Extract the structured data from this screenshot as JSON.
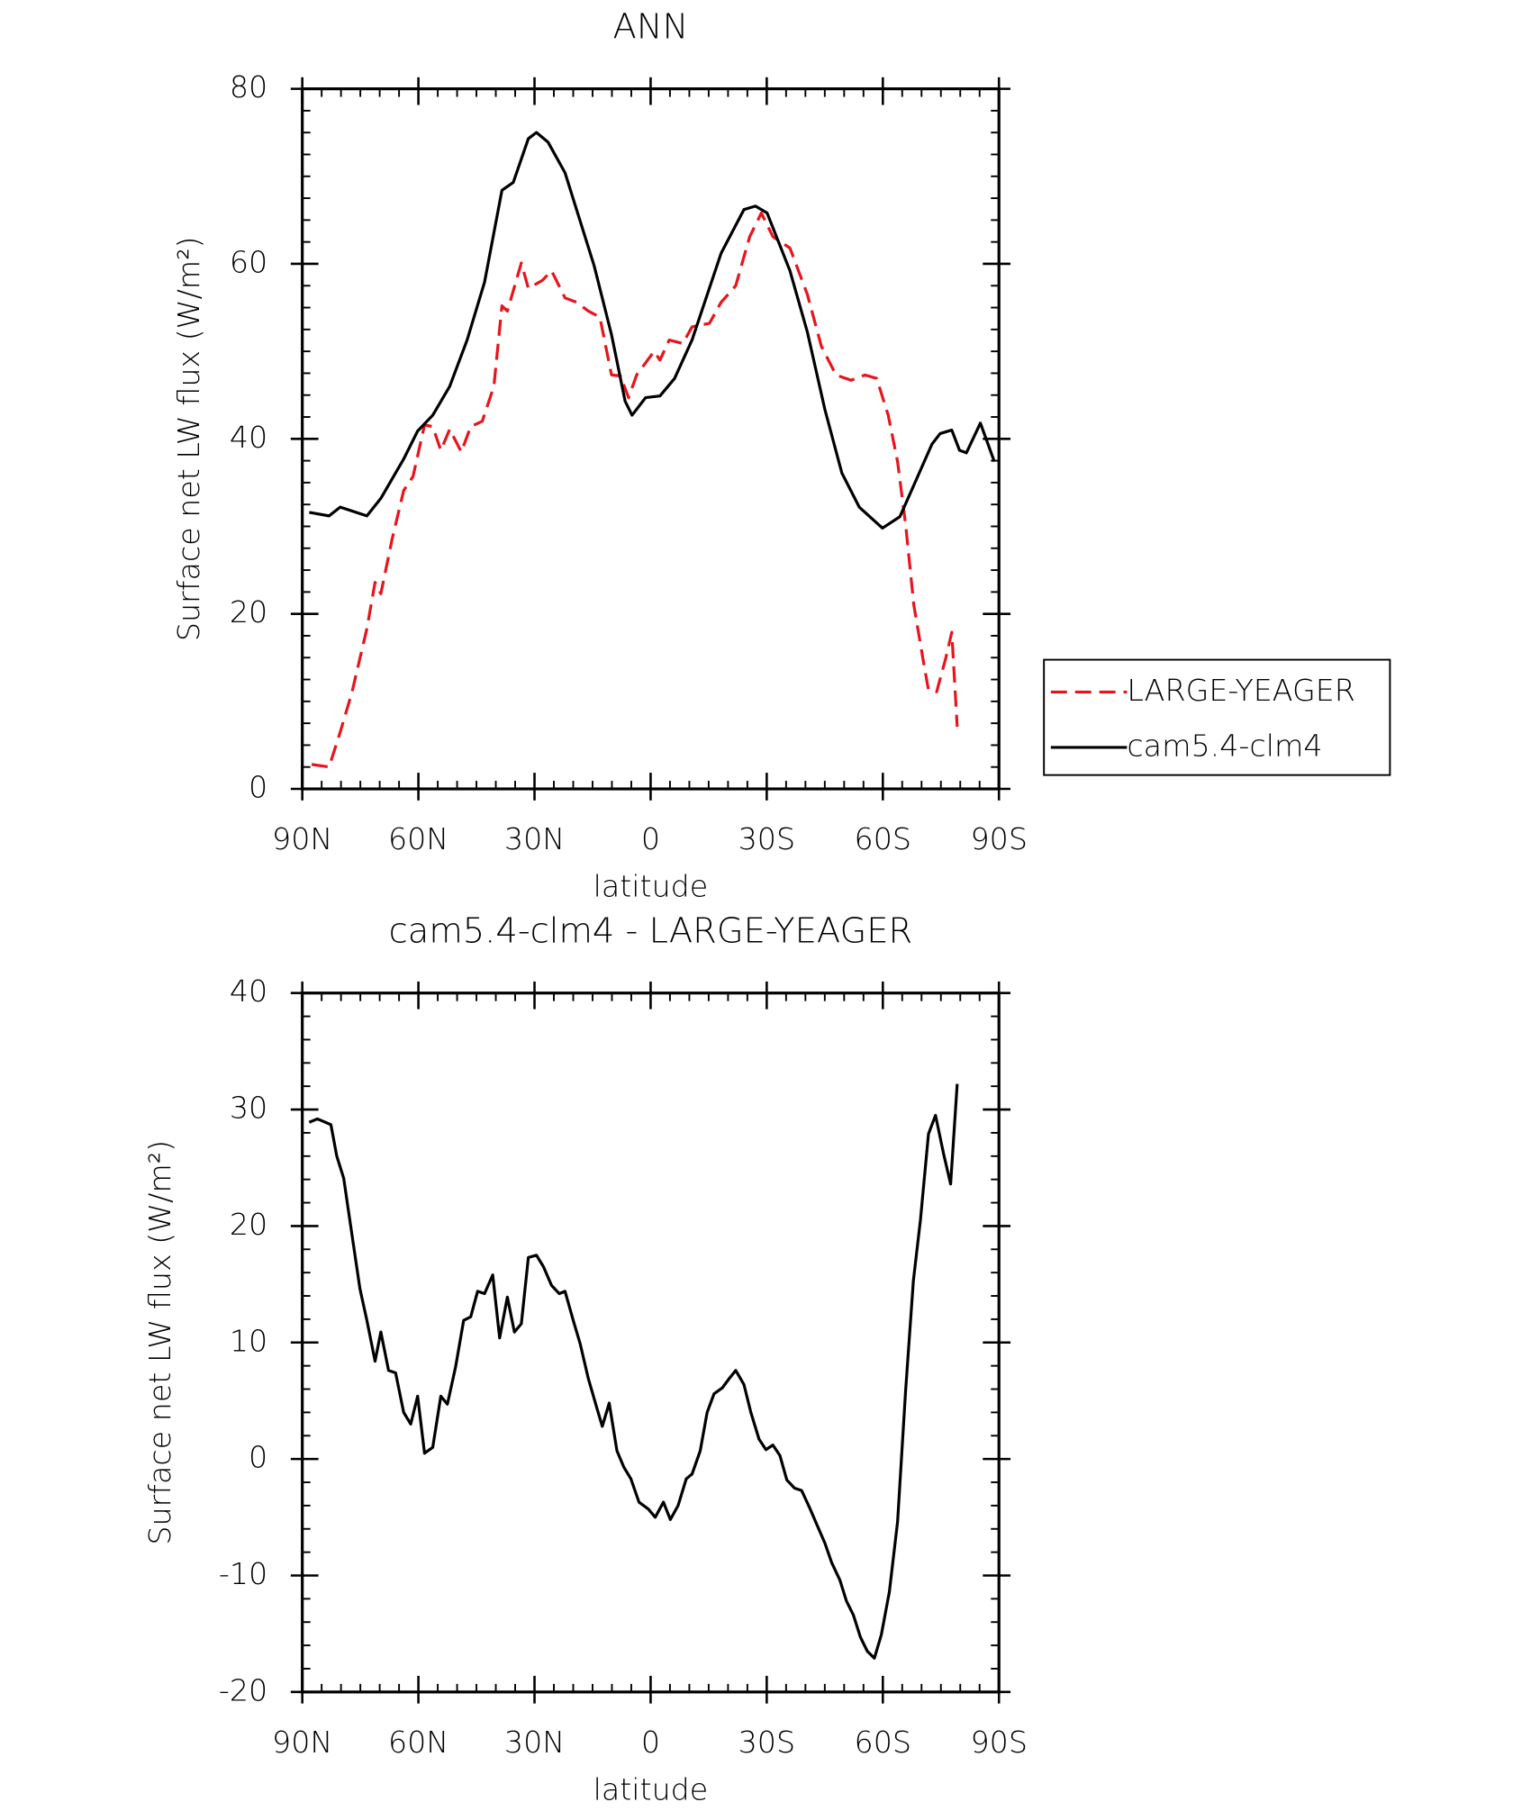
{
  "chart_data": [
    {
      "type": "line",
      "title": "ANN",
      "xlabel": "latitude",
      "ylabel": "Surface net LW flux (W/m²)",
      "xlim": [
        90,
        -90
      ],
      "xticks": [
        {
          "value": 90,
          "label": "90N"
        },
        {
          "value": 60,
          "label": "60N"
        },
        {
          "value": 30,
          "label": "30N"
        },
        0,
        {
          "value": -30,
          "label": "30S"
        },
        {
          "value": -60,
          "label": "60S"
        },
        {
          "value": -90,
          "label": "90S"
        }
      ],
      "ylim": [
        0,
        80
      ],
      "yticks": [
        0,
        20,
        40,
        60,
        80
      ],
      "legend": "right",
      "series": [
        {
          "name": "LARGE-YEAGER",
          "color": "#e8141b",
          "dash": true,
          "x": [
            87.6,
            83.1,
            80.2,
            77.2,
            73.3,
            71.2,
            69.7,
            66.8,
            63.8,
            61.4,
            58.4,
            56.3,
            54.2,
            51.9,
            48.9,
            46.5,
            43.5,
            40.5,
            38.4,
            37.0,
            33.4,
            31.6,
            28.0,
            25.6,
            22.1,
            19.1,
            16.1,
            13.1,
            10.1,
            7.8,
            5.7,
            3.6,
            -0.9,
            -2.4,
            -4.8,
            -8.3,
            -10.7,
            -15.2,
            -18.2,
            -22.0,
            -25.6,
            -28.6,
            -31.6,
            -36.0,
            -40.5,
            -44.1,
            -47.9,
            -51.8,
            -55.4,
            -58.4,
            -61.4,
            -63.8,
            -65.9,
            -68.0,
            -70.4,
            -71.8,
            -73.9,
            -76.3,
            -77.8,
            -79.2
          ],
          "values": [
            2.8,
            2.5,
            6.5,
            11,
            18.3,
            23.6,
            22.3,
            28.5,
            34.1,
            35.7,
            41.6,
            41.4,
            38.7,
            41.1,
            38.5,
            41.4,
            42,
            46,
            55.2,
            54.6,
            60.1,
            57.2,
            58.1,
            59.2,
            56.1,
            55.6,
            54.6,
            53.9,
            47.3,
            47.2,
            44.7,
            47.3,
            50,
            49,
            51.3,
            50.9,
            52.8,
            53.2,
            55.6,
            57.5,
            63.1,
            65.8,
            63.1,
            61.8,
            56.5,
            50.6,
            47.3,
            46.7,
            47.3,
            46.9,
            42.7,
            37.4,
            30.2,
            21,
            14.8,
            11.3,
            11.1,
            15,
            17.9,
            7.1
          ]
        },
        {
          "name": "cam5.4-clm4",
          "color": "#000000",
          "dash": false,
          "x": [
            88.2,
            83.1,
            80.2,
            73.3,
            69.7,
            63.8,
            60.2,
            56.3,
            51.9,
            47.4,
            42.9,
            38.4,
            35.5,
            31.6,
            29.5,
            26.5,
            22.1,
            14.6,
            10.1,
            6.6,
            4.8,
            1.3,
            -2.4,
            -6.2,
            -10.7,
            -18.2,
            -24.1,
            -27.1,
            -30.1,
            -36.0,
            -40.5,
            -45.0,
            -49.4,
            -53.9,
            -59.9,
            -64.4,
            -68.8,
            -72.7,
            -74.8,
            -77.8,
            -79.8,
            -81.6,
            -85.2,
            -88.8
          ],
          "values": [
            31.6,
            31.2,
            32.2,
            31.2,
            33.2,
            37.7,
            40.9,
            42.7,
            46,
            51.3,
            57.9,
            68.4,
            69.3,
            74.3,
            75,
            73.9,
            70.4,
            59.8,
            51.9,
            44.3,
            42.7,
            44.7,
            44.9,
            46.9,
            51.3,
            61.2,
            66.2,
            66.6,
            65.8,
            59.2,
            52.2,
            43.4,
            36.1,
            32.2,
            29.8,
            31.1,
            35.5,
            39.4,
            40.6,
            41,
            38.7,
            38.4,
            41.8,
            37.4
          ]
        }
      ]
    },
    {
      "type": "line",
      "title": "cam5.4-clm4 - LARGE-YEAGER",
      "xlabel": "latitude",
      "ylabel": "Surface net LW flux (W/m²)",
      "xlim": [
        90,
        -90
      ],
      "xticks": [
        {
          "value": 90,
          "label": "90N"
        },
        {
          "value": 60,
          "label": "60N"
        },
        {
          "value": 30,
          "label": "30N"
        },
        0,
        {
          "value": -30,
          "label": "30S"
        },
        {
          "value": -60,
          "label": "60S"
        },
        {
          "value": -90,
          "label": "90S"
        }
      ],
      "ylim": [
        -20,
        40
      ],
      "yticks": [
        -20,
        -10,
        0,
        10,
        20,
        30,
        40
      ],
      "series": [
        {
          "color": "#000000",
          "dash": false,
          "x": [
            88.2,
            86.1,
            82.6,
            81.1,
            79.3,
            77.2,
            75.1,
            73.3,
            71.2,
            69.7,
            67.7,
            65.9,
            63.8,
            62.0,
            60.2,
            58.4,
            56.3,
            54.2,
            52.5,
            50.4,
            48.3,
            46.5,
            44.7,
            42.9,
            40.8,
            39.0,
            37.0,
            35.2,
            33.4,
            31.6,
            29.5,
            27.7,
            25.6,
            23.6,
            22.1,
            20.0,
            18.2,
            16.1,
            14.0,
            12.5,
            10.7,
            8.7,
            6.9,
            5.1,
            3.0,
            0.6,
            -1.2,
            -3.3,
            -5.1,
            -7.1,
            -9.2,
            -10.7,
            -12.8,
            -14.6,
            -16.4,
            -18.5,
            -20.3,
            -22.0,
            -24.1,
            -25.9,
            -28.0,
            -29.8,
            -31.6,
            -33.4,
            -35.2,
            -37.2,
            -39.0,
            -41.1,
            -42.9,
            -45.0,
            -46.8,
            -48.9,
            -50.6,
            -52.4,
            -54.2,
            -56.0,
            -57.8,
            -59.6,
            -61.7,
            -63.8,
            -65.9,
            -67.9,
            -69.7,
            -71.8,
            -73.6,
            -75.7,
            -77.5,
            -79.2
          ],
          "values": [
            28.9,
            29.2,
            28.7,
            26,
            24.1,
            19.3,
            14.6,
            11.9,
            8.4,
            10.9,
            7.6,
            7.4,
            4,
            3,
            5.4,
            0.5,
            1,
            5.4,
            4.7,
            7.9,
            11.9,
            12.2,
            14.4,
            14.2,
            15.8,
            10.4,
            13.9,
            10.9,
            11.6,
            17.3,
            17.5,
            16.5,
            14.9,
            14.2,
            14.4,
            11.9,
            9.9,
            6.9,
            4.5,
            2.8,
            4.8,
            0.7,
            -0.7,
            -1.7,
            -3.7,
            -4.3,
            -5,
            -3.7,
            -5.2,
            -4,
            -1.7,
            -1.3,
            0.7,
            4,
            5.6,
            6.1,
            6.9,
            7.6,
            6.4,
            4,
            1.7,
            0.8,
            1.2,
            0.3,
            -1.8,
            -2.5,
            -2.7,
            -4.2,
            -5.6,
            -7.2,
            -8.9,
            -10.4,
            -12.2,
            -13.4,
            -15.3,
            -16.5,
            -17.1,
            -15.1,
            -11.4,
            -5.4,
            5.9,
            15.3,
            20.5,
            27.9,
            29.5,
            26.2,
            23.6,
            32.2
          ]
        }
      ]
    }
  ]
}
